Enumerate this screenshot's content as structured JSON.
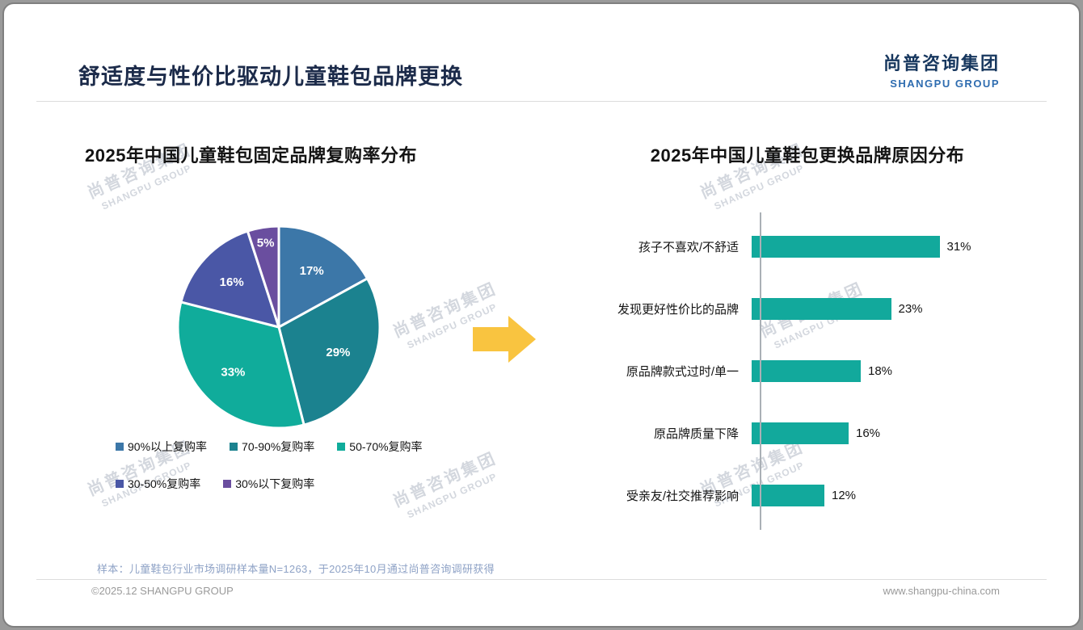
{
  "page": {
    "title": "舒适度与性价比驱动儿童鞋包品牌更换",
    "logo": {
      "cn": "尚普咨询集团",
      "en": "SHANGPU GROUP"
    },
    "watermark": {
      "cn": "尚普咨询集团",
      "en": "SHANGPU GROUP"
    },
    "footnote": "样本：儿童鞋包行业市场调研样本量N=1263，于2025年10月通过尚普咨询调研获得",
    "copyright": "©2025.12 SHANGPU GROUP",
    "website": "www.shangpu-china.com",
    "arrow_color": "#F9C440"
  },
  "chart_data": [
    {
      "type": "pie",
      "title": "2025年中国儿童鞋包固定品牌复购率分布",
      "labels": [
        "90%以上复购率",
        "70-90%复购率",
        "50-70%复购率",
        "30-50%复购率",
        "30%以下复购率"
      ],
      "values": [
        17,
        29,
        33,
        16,
        5
      ],
      "data_labels": [
        "17%",
        "29%",
        "33%",
        "16%",
        "5%"
      ],
      "colors": [
        "#3C77A8",
        "#1B828F",
        "#10AC9B",
        "#4A57A6",
        "#6A4E9F"
      ],
      "legend_position": "bottom",
      "start_angle_deg": 0,
      "direction": "clockwise"
    },
    {
      "type": "bar",
      "orientation": "horizontal",
      "title": "2025年中国儿童鞋包更换品牌原因分布",
      "categories": [
        "孩子不喜欢/不舒适",
        "发现更好性价比的品牌",
        "原品牌款式过时/单一",
        "原品牌质量下降",
        "受亲友/社交推荐影响"
      ],
      "values": [
        31,
        23,
        18,
        16,
        12
      ],
      "value_labels": [
        "31%",
        "23%",
        "18%",
        "16%",
        "12%"
      ],
      "bar_color": "#12A99C",
      "xlim": [
        0,
        35
      ],
      "grid": false,
      "legend": false
    }
  ]
}
